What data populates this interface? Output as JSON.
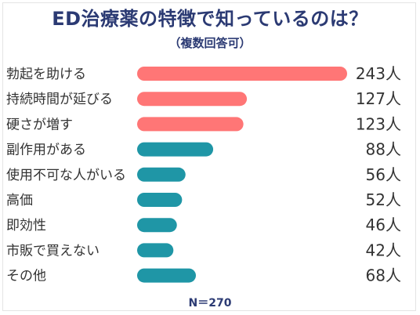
{
  "title": "ED治療薬の特徴で知っているのは？",
  "subtitle": "（複数回答可）",
  "footer": "N＝270",
  "colors": {
    "primary": "#ff7676",
    "secondary": "#1f96a6",
    "title": "#2b3a73",
    "text": "#333333"
  },
  "chart_data": {
    "type": "bar",
    "orientation": "horizontal",
    "title": "ED治療薬の特徴で知っているのは？",
    "categories": [
      "勃起を助ける",
      "持続時間が延びる",
      "硬さが増す",
      "副作用がある",
      "使用不可な人がいる",
      "高価",
      "即効性",
      "市販で買えない",
      "その他"
    ],
    "values": [
      243,
      127,
      123,
      88,
      56,
      52,
      46,
      42,
      68
    ],
    "value_labels": [
      "243人",
      "127人",
      "123人",
      "88人",
      "56人",
      "52人",
      "46人",
      "42人",
      "68人"
    ],
    "highlight_count": 3,
    "xlim": [
      0,
      270
    ]
  }
}
